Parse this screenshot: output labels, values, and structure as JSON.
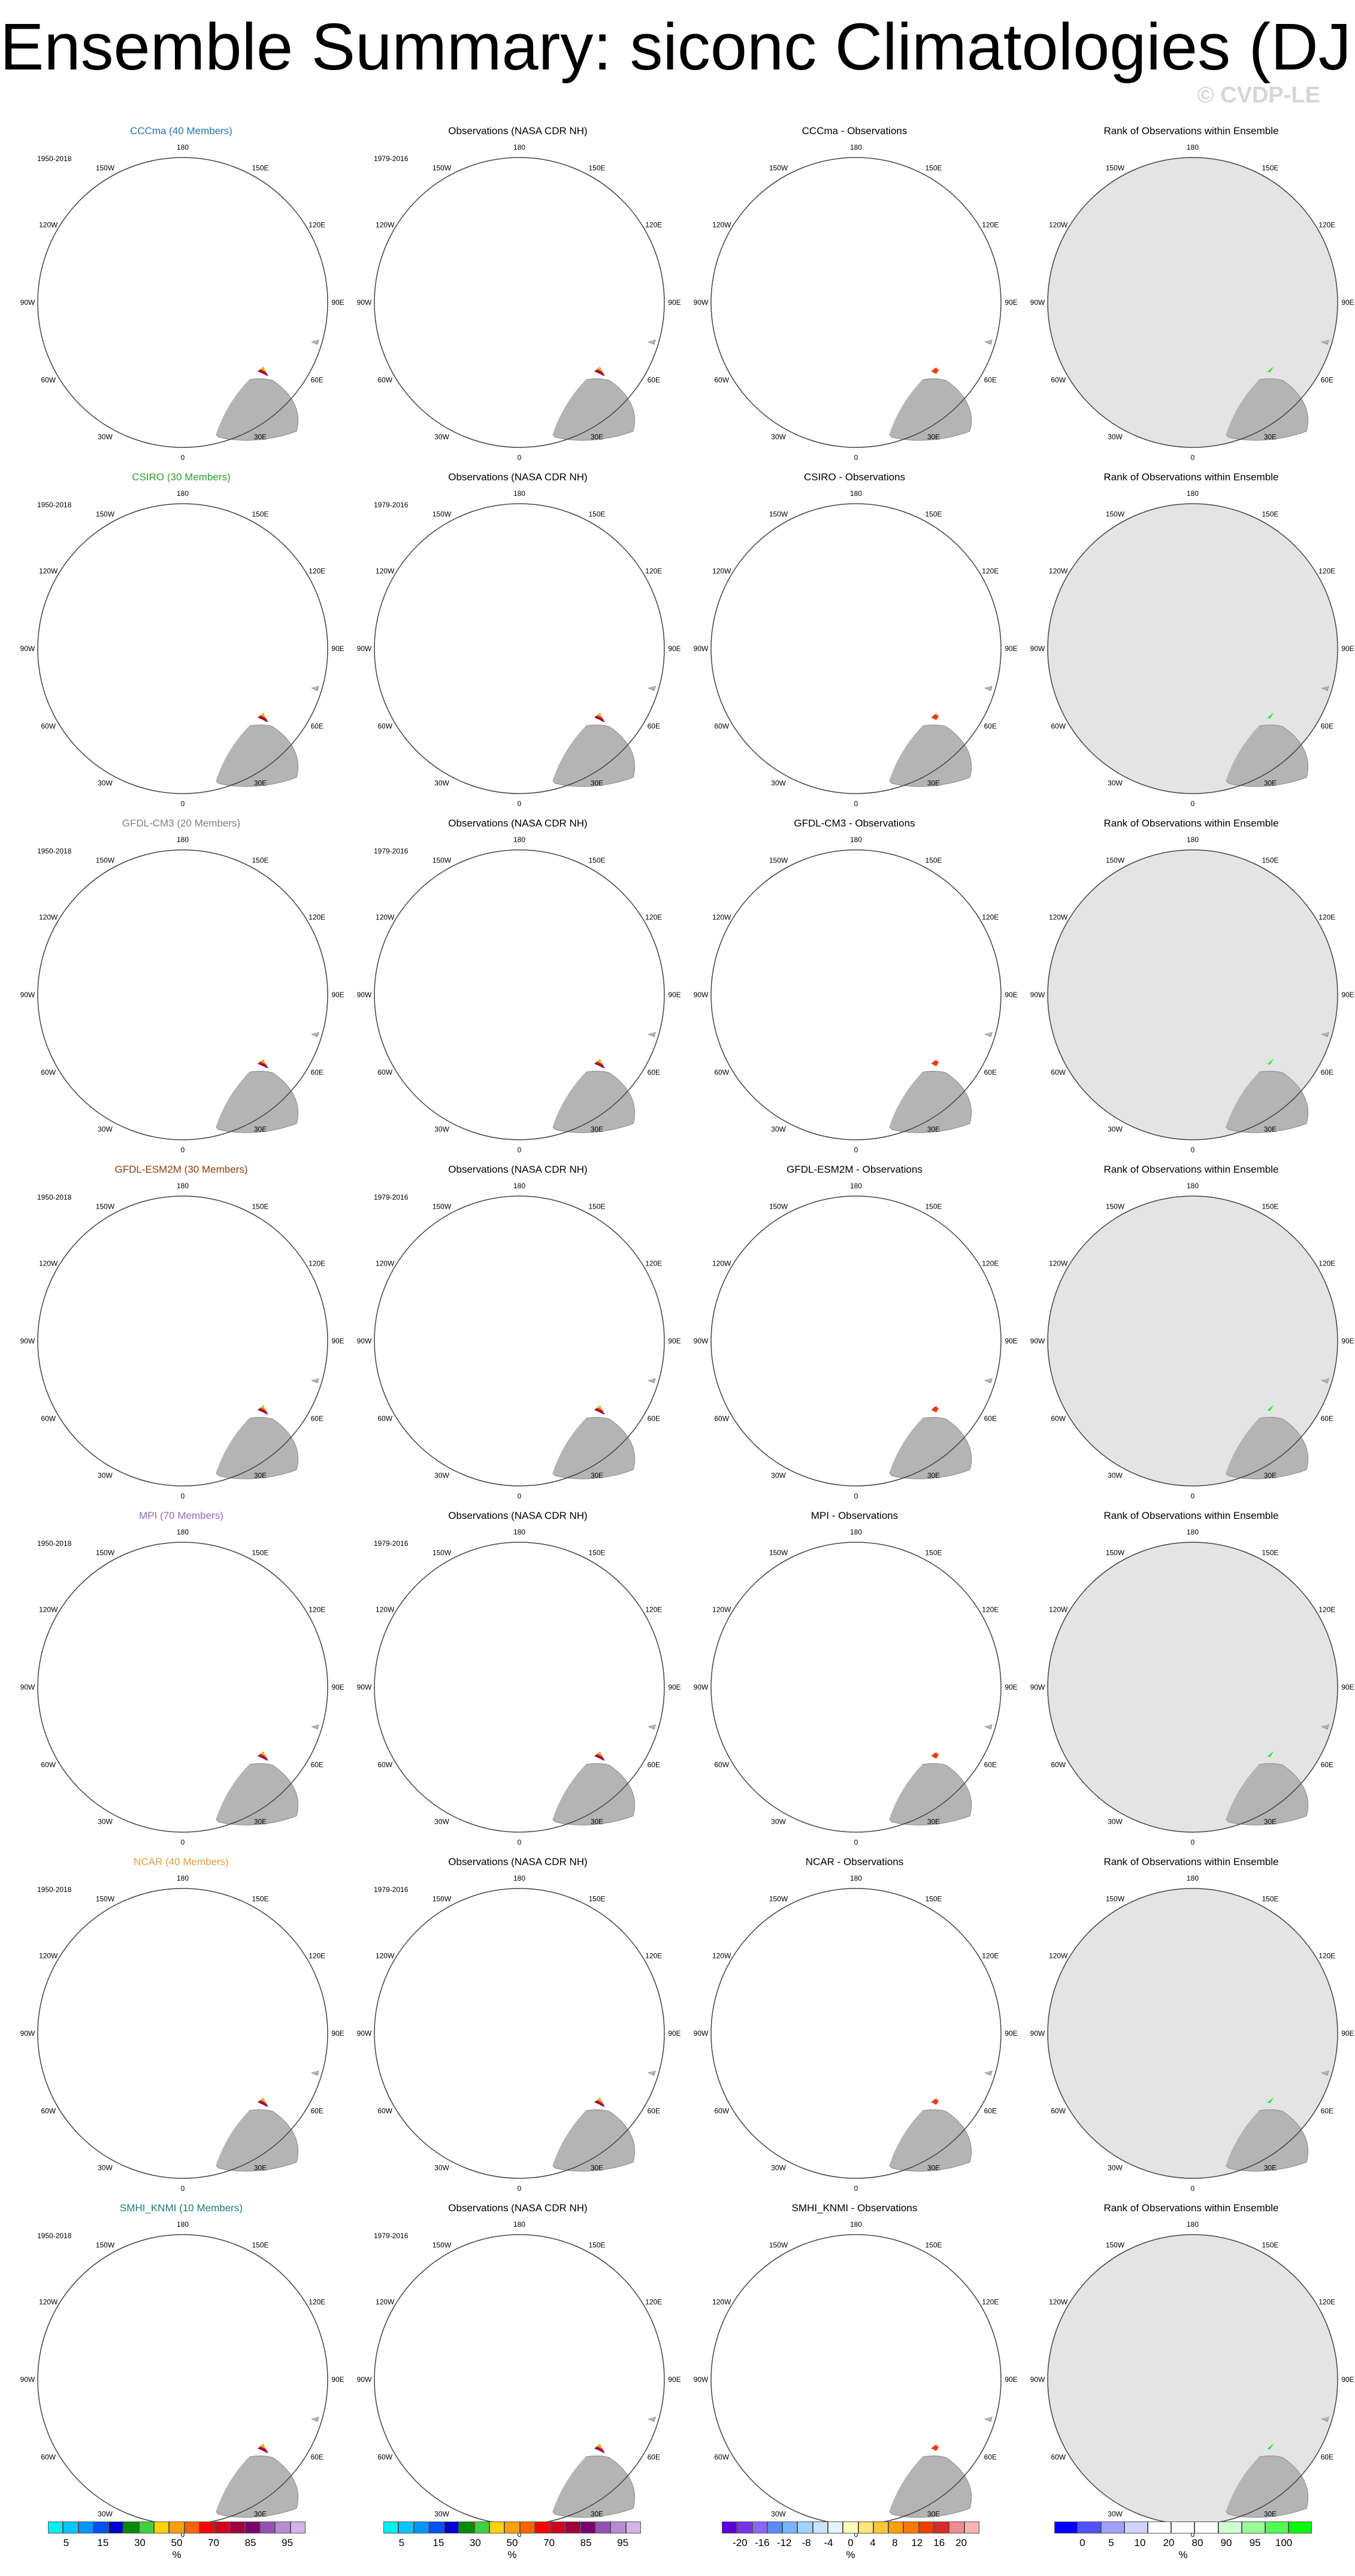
{
  "page": {
    "title": "Ensemble Summary: siconc Climatologies (DJF)",
    "watermark": "© CVDP-LE"
  },
  "lon_labels": [
    "180",
    "150E",
    "120E",
    "90E",
    "60E",
    "30E",
    "0",
    "30W",
    "60W",
    "90W",
    "120W",
    "150W"
  ],
  "columns": [
    {
      "kind": "model"
    },
    {
      "kind": "obs"
    },
    {
      "kind": "diff"
    },
    {
      "kind": "rank"
    }
  ],
  "rows": [
    {
      "model": "CCCma (40 Members)",
      "model_color": "#1f77b4",
      "model_years": "1950-2018",
      "obs_title": "Observations (NASA CDR NH)",
      "obs_years": "1979-2016",
      "diff_title": "CCCma - Observations",
      "rank_title": "Rank of Observations within Ensemble"
    },
    {
      "model": "CSIRO (30 Members)",
      "model_color": "#2ca02c",
      "model_years": "1950-2018",
      "obs_title": "Observations (NASA CDR NH)",
      "obs_years": "1979-2016",
      "diff_title": "CSIRO - Observations",
      "rank_title": "Rank of Observations within Ensemble"
    },
    {
      "model": "GFDL-CM3 (20 Members)",
      "model_color": "#7f7f7f",
      "model_years": "1950-2018",
      "obs_title": "Observations (NASA CDR NH)",
      "obs_years": "1979-2016",
      "diff_title": "GFDL-CM3 - Observations",
      "rank_title": "Rank of Observations within Ensemble"
    },
    {
      "model": "GFDL-ESM2M (30 Members)",
      "model_color": "#8c3c0c",
      "model_years": "1950-2018",
      "obs_title": "Observations (NASA CDR NH)",
      "obs_years": "1979-2016",
      "diff_title": "GFDL-ESM2M - Observations",
      "rank_title": "Rank of Observations within Ensemble"
    },
    {
      "model": "MPI (70 Members)",
      "model_color": "#9467bd",
      "model_years": "1950-2018",
      "obs_title": "Observations (NASA CDR NH)",
      "obs_years": "1979-2016",
      "diff_title": "MPI - Observations",
      "rank_title": "Rank of Observations within Ensemble"
    },
    {
      "model": "NCAR (40 Members)",
      "model_color": "#e39c3c",
      "model_years": "1950-2018",
      "obs_title": "Observations (NASA CDR NH)",
      "obs_years": "1979-2016",
      "diff_title": "NCAR - Observations",
      "rank_title": "Rank of Observations within Ensemble"
    },
    {
      "model": "SMHI_KNMI (10 Members)",
      "model_color": "#1a7a7a",
      "model_years": "1950-2018",
      "obs_title": "Observations (NASA CDR NH)",
      "obs_years": "1979-2016",
      "diff_title": "SMHI_KNMI - Observations",
      "rank_title": "Rank of Observations within Ensemble"
    }
  ],
  "legends": [
    {
      "kind": "conc",
      "unit": "%",
      "colors": [
        "#00f0f0",
        "#00c8ff",
        "#0096ff",
        "#0050ff",
        "#0000d0",
        "#008c00",
        "#3cd23c",
        "#ffd200",
        "#ffa000",
        "#ff6400",
        "#ff0000",
        "#d2001e",
        "#a0003c",
        "#78006e",
        "#9650b4",
        "#b48cd2",
        "#d2b4e6"
      ],
      "ticks": [
        "5",
        "15",
        "30",
        "50",
        "70",
        "85",
        "95"
      ]
    },
    {
      "kind": "conc",
      "unit": "%",
      "colors": [
        "#00f0f0",
        "#00c8ff",
        "#0096ff",
        "#0050ff",
        "#0000d0",
        "#008c00",
        "#3cd23c",
        "#ffd200",
        "#ffa000",
        "#ff6400",
        "#ff0000",
        "#d2001e",
        "#a0003c",
        "#78006e",
        "#9650b4",
        "#b48cd2",
        "#d2b4e6"
      ],
      "ticks": [
        "5",
        "15",
        "30",
        "50",
        "70",
        "85",
        "95"
      ]
    },
    {
      "kind": "diff",
      "unit": "%",
      "colors": [
        "#5a00dc",
        "#7832f0",
        "#8c64ff",
        "#5a8cff",
        "#78b4ff",
        "#a0d2ff",
        "#c8e6ff",
        "#e6f4ff",
        "#fffabe",
        "#ffe678",
        "#ffc832",
        "#ffa000",
        "#ff7800",
        "#f03c00",
        "#dc2828",
        "#f08c8c",
        "#ffb4b4"
      ],
      "ticks": [
        "-20",
        "-16",
        "-12",
        "-8",
        "-4",
        "0",
        "4",
        "8",
        "12",
        "16",
        "20"
      ]
    },
    {
      "kind": "rank",
      "unit": "%",
      "colors": [
        "#0000ff",
        "#5050ff",
        "#a0a0ff",
        "#d2d2ff",
        "#ffffff",
        "#ffffff",
        "#ffffff",
        "#d2ffd2",
        "#96ff96",
        "#50ff50",
        "#00ff00"
      ],
      "ticks": [
        "0",
        "5",
        "10",
        "20",
        "80",
        "90",
        "95",
        "100"
      ]
    }
  ]
}
